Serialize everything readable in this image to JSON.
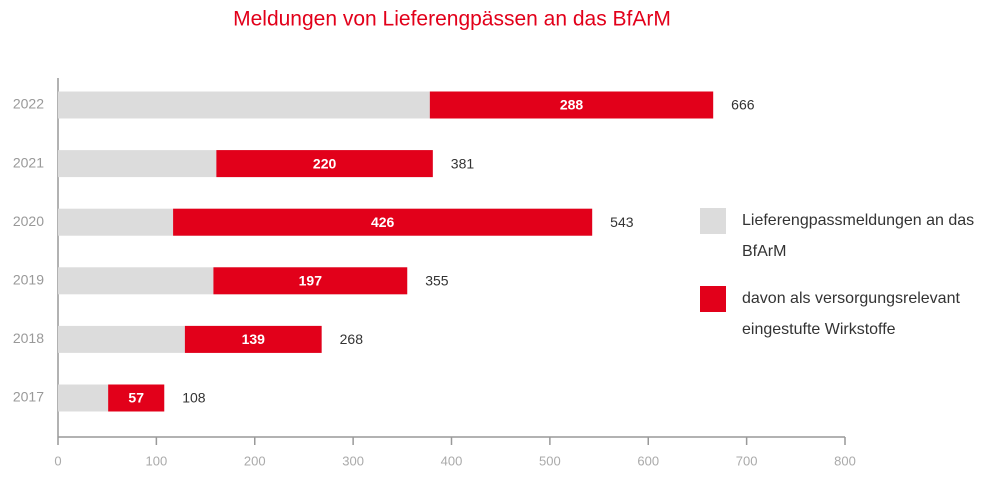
{
  "chart_data": {
    "type": "bar",
    "orientation": "horizontal",
    "title": "Meldungen von Lieferengpässen an das BfArM",
    "categories": [
      "2022",
      "2021",
      "2020",
      "2019",
      "2018",
      "2017"
    ],
    "series": [
      {
        "name": "Lieferengpassmeldungen an das BfArM",
        "color": "#dcdcdc",
        "values": [
          666,
          381,
          543,
          355,
          268,
          108
        ]
      },
      {
        "name": "davon als versorgungsrelevant eingestufte Wirkstoffe",
        "color": "#e2001a",
        "values": [
          288,
          220,
          426,
          197,
          139,
          57
        ]
      }
    ],
    "xlim": [
      0,
      800
    ],
    "xticks": [
      0,
      100,
      200,
      300,
      400,
      500,
      600,
      700,
      800
    ],
    "grid": false
  }
}
